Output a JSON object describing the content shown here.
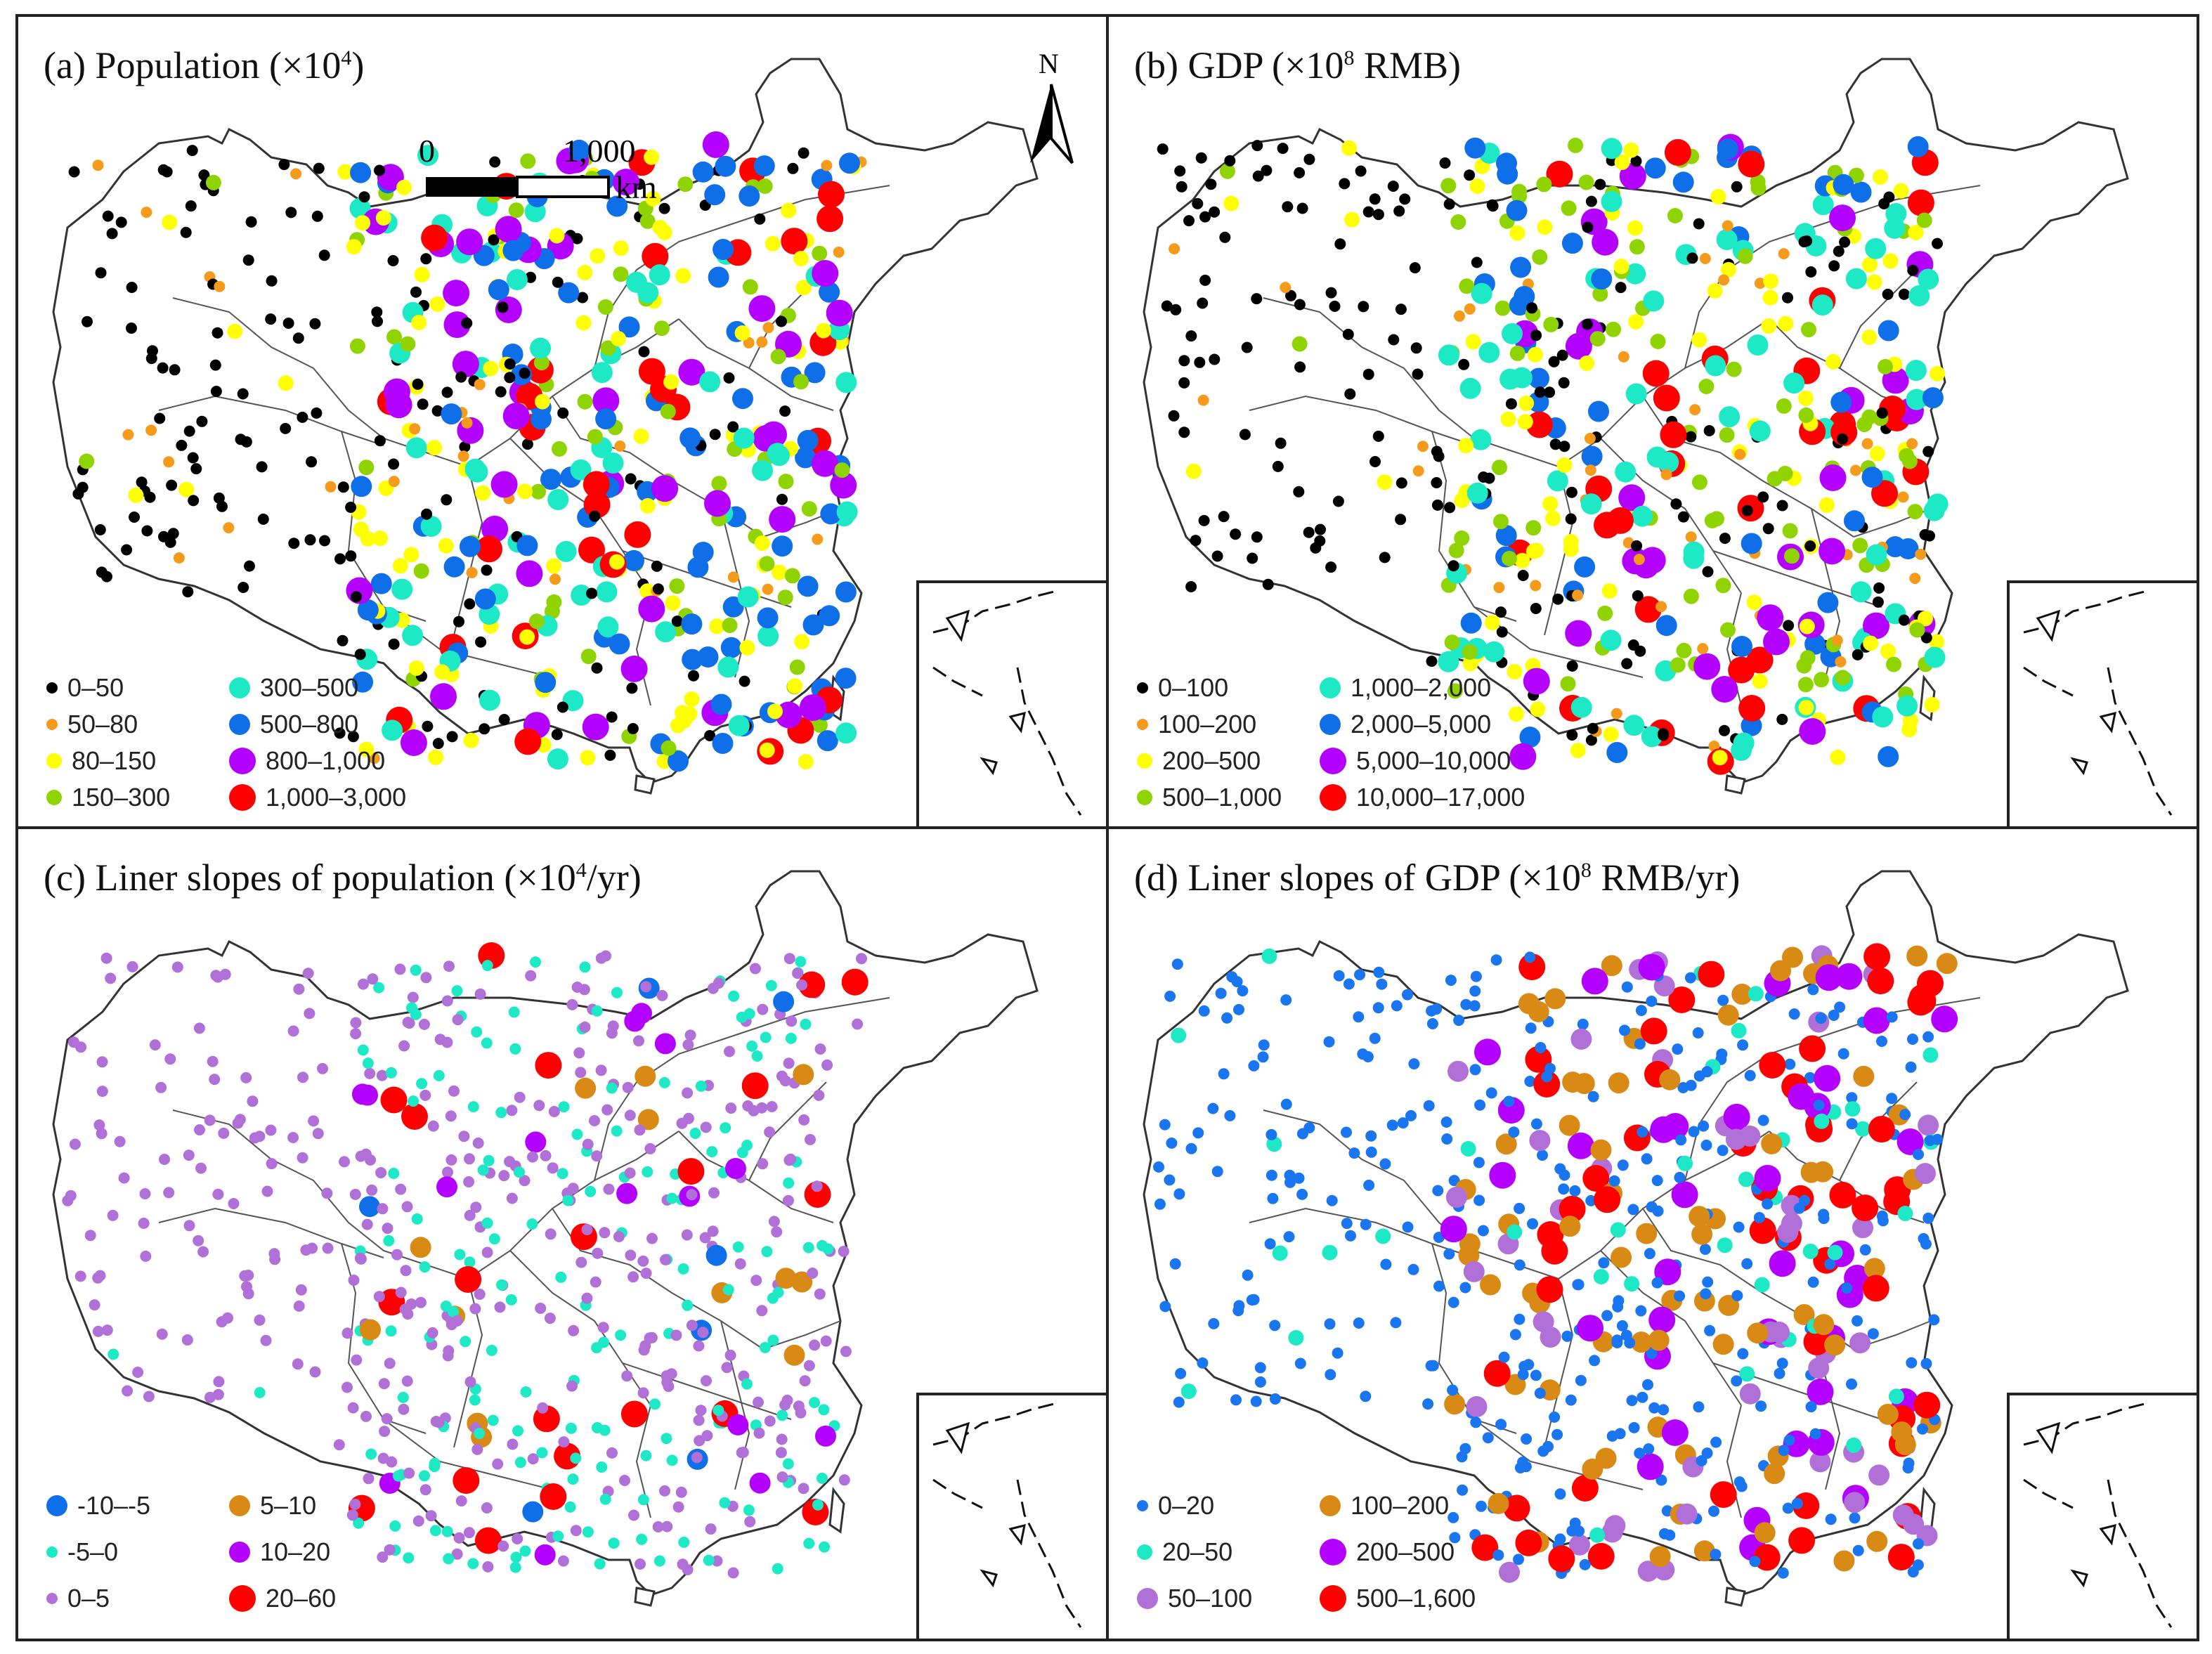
{
  "panels": {
    "a": {
      "title_prefix": "(a) Population (×10",
      "title_sup": "4",
      "title_suffix": ")",
      "legend": [
        {
          "label": "0–50",
          "color": "#000000",
          "size": "xs"
        },
        {
          "label": "50–80",
          "color": "#f59a1b",
          "size": "xs"
        },
        {
          "label": "80–150",
          "color": "#ffff00",
          "size": "s"
        },
        {
          "label": "150–300",
          "color": "#8fd400",
          "size": "s"
        },
        {
          "label": "300–500",
          "color": "#1de9c6",
          "size": "m"
        },
        {
          "label": "500–800",
          "color": "#0f6fe8",
          "size": "m"
        },
        {
          "label": "800–1,000",
          "color": "#b300ff",
          "size": "l"
        },
        {
          "label": "1,000–3,000",
          "color": "#ff0000",
          "size": "l"
        }
      ]
    },
    "b": {
      "title_prefix": "(b) GDP (×10",
      "title_sup": "8",
      "title_suffix": " RMB)",
      "legend": [
        {
          "label": "0–100",
          "color": "#000000",
          "size": "xs"
        },
        {
          "label": "100–200",
          "color": "#f59a1b",
          "size": "xs"
        },
        {
          "label": "200–500",
          "color": "#ffff00",
          "size": "s"
        },
        {
          "label": "500–1,000",
          "color": "#8fd400",
          "size": "s"
        },
        {
          "label": "1,000–2,000",
          "color": "#1de9c6",
          "size": "m"
        },
        {
          "label": "2,000–5,000",
          "color": "#0f6fe8",
          "size": "m"
        },
        {
          "label": "5,000–10,000",
          "color": "#b300ff",
          "size": "l"
        },
        {
          "label": "10,000–17,000",
          "color": "#ff0000",
          "size": "l"
        }
      ]
    },
    "c": {
      "title_prefix": "(c) Liner slopes of population (×10",
      "title_sup": "4",
      "title_suffix": "/yr)",
      "legend": [
        {
          "label": "-10–-5",
          "color": "#0f6fe8",
          "size": "m"
        },
        {
          "label": "-5–0",
          "color": "#1de9c6",
          "size": "xs"
        },
        {
          "label": "0–5",
          "color": "#b070d8",
          "size": "xs"
        },
        {
          "label": "5–10",
          "color": "#d98a14",
          "size": "m"
        },
        {
          "label": "10–20",
          "color": "#b300ff",
          "size": "m"
        },
        {
          "label": "20–60",
          "color": "#ff0000",
          "size": "l"
        }
      ]
    },
    "d": {
      "title_prefix": "(d) Liner slopes of GDP (×10",
      "title_sup": "8",
      "title_suffix": " RMB/yr)",
      "legend": [
        {
          "label": "0–20",
          "color": "#1a75f0",
          "size": "xs"
        },
        {
          "label": "20–50",
          "color": "#1de9c6",
          "size": "s"
        },
        {
          "label": "50–100",
          "color": "#b070d8",
          "size": "m"
        },
        {
          "label": "100–200",
          "color": "#d98a14",
          "size": "m"
        },
        {
          "label": "200–500",
          "color": "#b300ff",
          "size": "l"
        },
        {
          "label": "500–1,600",
          "color": "#ff0000",
          "size": "l"
        }
      ]
    }
  },
  "scale": {
    "zero": "0",
    "thousand": "1,000",
    "unit": "km"
  },
  "north": "N"
}
